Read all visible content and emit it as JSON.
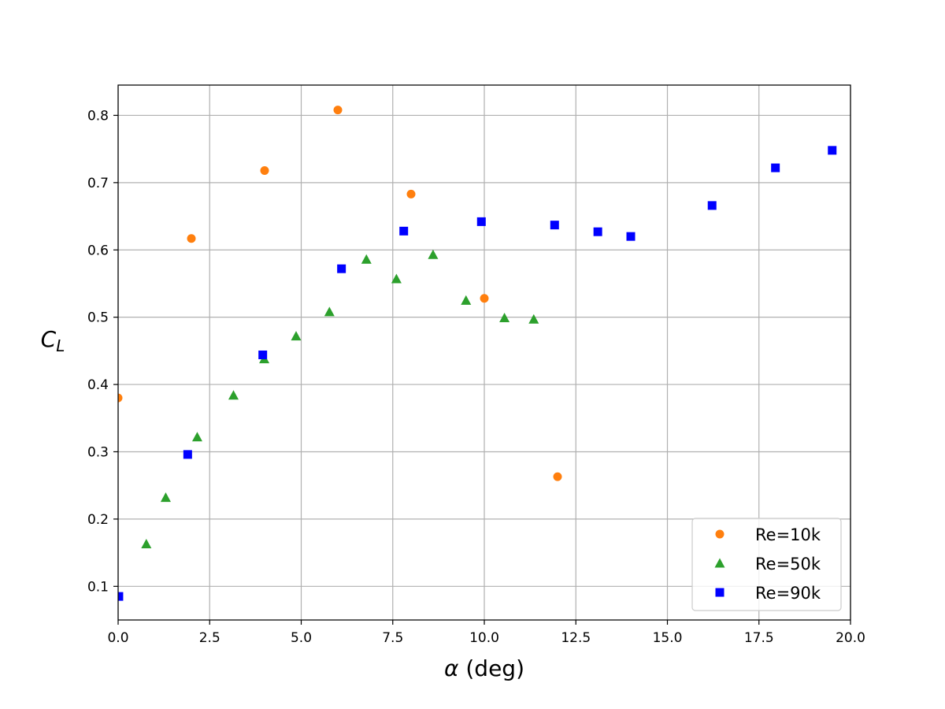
{
  "chart_data": {
    "type": "scatter",
    "title": "",
    "xlabel": "α (deg)",
    "ylabel": "C_L",
    "xlim": [
      0.0,
      20.0
    ],
    "ylim": [
      0.05,
      0.845
    ],
    "xticks": [
      0.0,
      2.5,
      5.0,
      7.5,
      10.0,
      12.5,
      15.0,
      17.5,
      20.0
    ],
    "xtick_labels": [
      "0.0",
      "2.5",
      "5.0",
      "7.5",
      "10.0",
      "12.5",
      "15.0",
      "17.5",
      "20.0"
    ],
    "yticks": [
      0.1,
      0.2,
      0.3,
      0.4,
      0.5,
      0.6,
      0.7,
      0.8
    ],
    "ytick_labels": [
      "0.1",
      "0.2",
      "0.3",
      "0.4",
      "0.5",
      "0.6",
      "0.7",
      "0.8"
    ],
    "grid": true,
    "legend_position": "bottom-right",
    "series": [
      {
        "name": "Re=10k",
        "marker": "circle",
        "color": "#ff7f0e",
        "x": [
          0.0,
          2.0,
          4.0,
          6.0,
          8.0,
          10.0,
          12.0
        ],
        "y": [
          0.38,
          0.617,
          0.718,
          0.808,
          0.683,
          0.528,
          0.263
        ]
      },
      {
        "name": "Re=50k",
        "marker": "triangle",
        "color": "#2ca02c",
        "x": [
          0.77,
          1.3,
          2.16,
          3.15,
          3.99,
          4.86,
          5.77,
          6.78,
          7.6,
          8.6,
          9.5,
          10.55,
          11.35
        ],
        "y": [
          0.163,
          0.232,
          0.322,
          0.384,
          0.438,
          0.472,
          0.508,
          0.586,
          0.557,
          0.593,
          0.525,
          0.499,
          0.497
        ]
      },
      {
        "name": "Re=90k",
        "marker": "square",
        "color": "#0000ff",
        "x": [
          0.02,
          1.9,
          3.95,
          6.1,
          7.8,
          9.92,
          11.92,
          13.1,
          14.0,
          16.22,
          17.95,
          19.5
        ],
        "y": [
          0.085,
          0.296,
          0.444,
          0.572,
          0.628,
          0.642,
          0.637,
          0.627,
          0.62,
          0.666,
          0.722,
          0.748
        ]
      }
    ]
  }
}
